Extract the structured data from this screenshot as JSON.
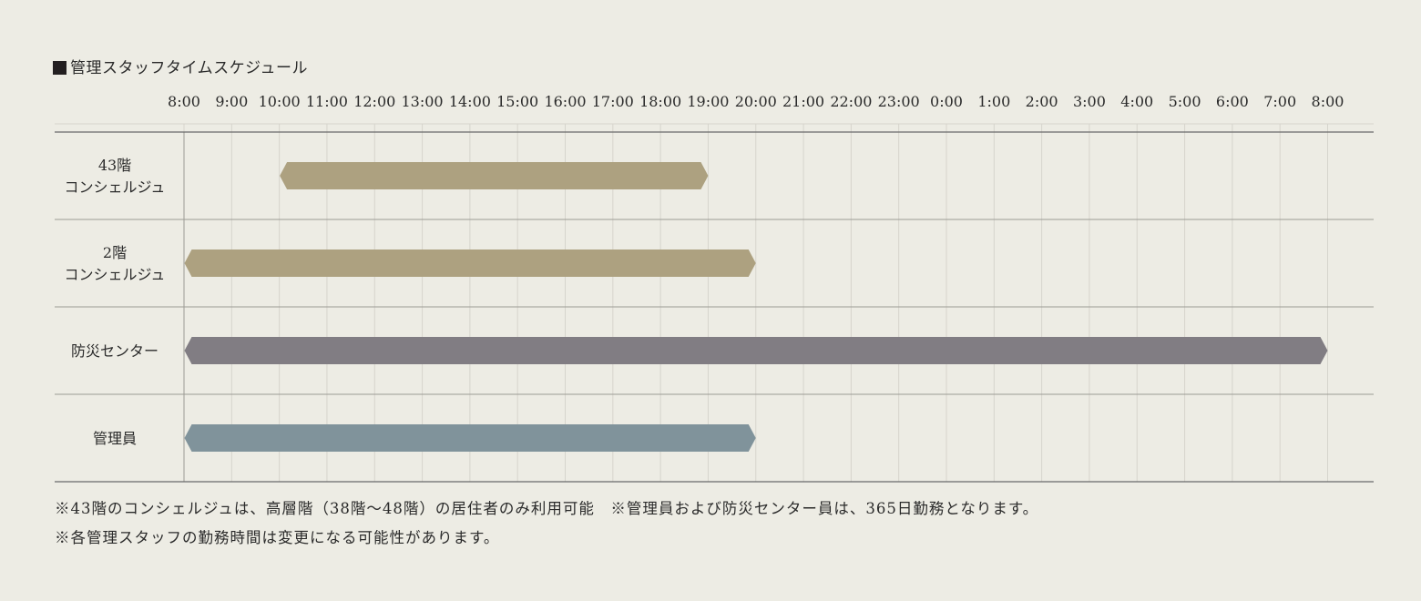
{
  "chart_data": {
    "type": "gantt",
    "title": "管理スタッフタイムスケジュール",
    "x_ticks": [
      "8:00",
      "9:00",
      "10:00",
      "11:00",
      "12:00",
      "13:00",
      "14:00",
      "15:00",
      "16:00",
      "17:00",
      "18:00",
      "19:00",
      "20:00",
      "21:00",
      "22:00",
      "23:00",
      "0:00",
      "1:00",
      "2:00",
      "3:00",
      "4:00",
      "5:00",
      "6:00",
      "7:00",
      "8:00"
    ],
    "x_range_hours": [
      8,
      32
    ],
    "grid": true,
    "rows": [
      {
        "label_lines": [
          "43階",
          "コンシェルジュ"
        ],
        "start": "10:00",
        "end": "19:00",
        "color": "#ada180"
      },
      {
        "label_lines": [
          "2階",
          "コンシェルジュ"
        ],
        "start": "8:00",
        "end": "20:00",
        "color": "#ada180"
      },
      {
        "label_lines": [
          "防災センター"
        ],
        "start": "8:00",
        "end": "8:00 (翌日)",
        "color": "#817d83"
      },
      {
        "label_lines": [
          "管理員"
        ],
        "start": "8:00",
        "end": "20:00",
        "color": "#80939b"
      }
    ],
    "bars_hours": [
      [
        10,
        19
      ],
      [
        8,
        20
      ],
      [
        8,
        32
      ],
      [
        8,
        20
      ]
    ]
  },
  "notes": [
    "※43階のコンシェルジュは、高層階（38階〜48階）の居住者のみ利用可能　※管理員および防災センター員は、365日勤務となります。",
    "※各管理スタッフの勤務時間は変更になる可能性があります。"
  ],
  "colors": {
    "background": "#edece4",
    "grid": "#d6d4cc",
    "rule": "#6a6a6a"
  }
}
